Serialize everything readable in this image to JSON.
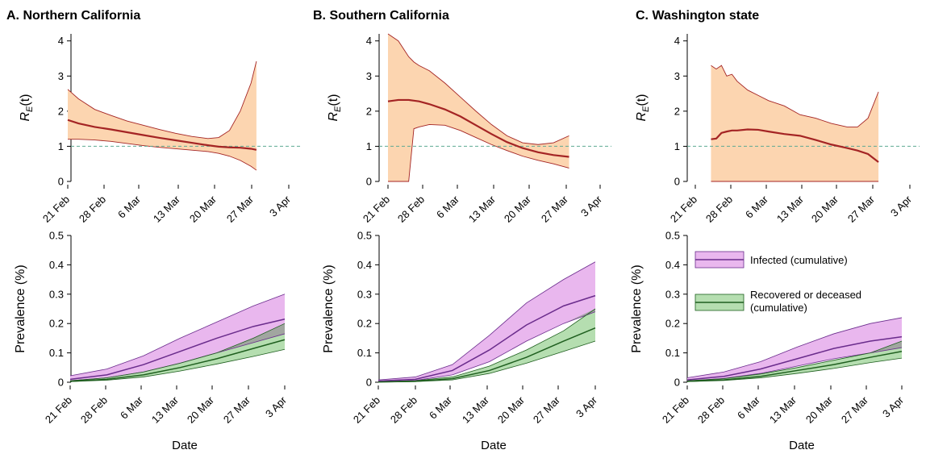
{
  "chart_data": [
    {
      "type": "line",
      "panel_title": "A. Northern California",
      "ylabel": "R_E(t)",
      "ylim": [
        0,
        4.2
      ],
      "yticks": [
        0,
        1,
        2,
        3,
        4
      ],
      "x_tick_labels": [
        "21 Feb",
        "28 Feb",
        "6 Mar",
        "13 Mar",
        "20 Mar",
        "27 Mar",
        "3 Apr"
      ],
      "reference_line": 1,
      "x_days": [
        0,
        2,
        5,
        8,
        11,
        14,
        17,
        20,
        23,
        26,
        28,
        30,
        32,
        34,
        35
      ],
      "median": [
        1.75,
        1.65,
        1.55,
        1.48,
        1.4,
        1.32,
        1.24,
        1.17,
        1.1,
        1.03,
        0.99,
        0.97,
        0.96,
        0.93,
        0.9
      ],
      "lower": [
        1.2,
        1.2,
        1.18,
        1.14,
        1.08,
        1.02,
        0.97,
        0.93,
        0.89,
        0.85,
        0.8,
        0.72,
        0.6,
        0.43,
        0.32
      ],
      "upper": [
        2.62,
        2.35,
        2.05,
        1.88,
        1.72,
        1.6,
        1.48,
        1.37,
        1.28,
        1.22,
        1.25,
        1.45,
        2.0,
        2.8,
        3.42
      ]
    },
    {
      "type": "line",
      "panel_title": "B. Southern California",
      "ylabel": "R_E(t)",
      "ylim": [
        0,
        4.2
      ],
      "yticks": [
        0,
        1,
        2,
        3,
        4
      ],
      "x_tick_labels": [
        "21 Feb",
        "28 Feb",
        "6 Mar",
        "13 Mar",
        "20 Mar",
        "27 Mar",
        "3 Apr"
      ],
      "reference_line": 1,
      "x_days": [
        0,
        2,
        4,
        5,
        6,
        8,
        11,
        14,
        17,
        20,
        23,
        26,
        29,
        32,
        35
      ],
      "median": [
        2.28,
        2.32,
        2.32,
        2.3,
        2.28,
        2.2,
        2.05,
        1.85,
        1.6,
        1.35,
        1.12,
        0.95,
        0.83,
        0.75,
        0.7
      ],
      "lower": [
        0,
        0,
        0,
        1.5,
        1.55,
        1.62,
        1.6,
        1.45,
        1.25,
        1.05,
        0.88,
        0.72,
        0.6,
        0.5,
        0.38
      ],
      "upper": [
        4.2,
        4.0,
        3.55,
        3.4,
        3.3,
        3.15,
        2.8,
        2.4,
        2.0,
        1.62,
        1.3,
        1.1,
        1.05,
        1.1,
        1.3
      ]
    },
    {
      "type": "line",
      "panel_title": "C. Washington state",
      "ylabel": "R_E(t)",
      "ylim": [
        0,
        4.2
      ],
      "yticks": [
        0,
        1,
        2,
        3,
        4
      ],
      "x_tick_labels": [
        "21 Feb",
        "28 Feb",
        "6 Mar",
        "13 Mar",
        "20 Mar",
        "27 Mar",
        "3 Apr"
      ],
      "reference_line": 1,
      "x_days": [
        3,
        4,
        5,
        6,
        7,
        8,
        10,
        12,
        14,
        17,
        20,
        23,
        26,
        29,
        31,
        33,
        35
      ],
      "median": [
        1.2,
        1.22,
        1.38,
        1.42,
        1.45,
        1.45,
        1.48,
        1.47,
        1.42,
        1.35,
        1.3,
        1.18,
        1.05,
        0.95,
        0.88,
        0.78,
        0.55
      ],
      "lower": [
        0,
        0,
        0,
        0,
        0,
        0,
        0,
        0,
        0,
        0,
        0,
        0,
        0,
        0,
        0,
        0,
        0
      ],
      "upper": [
        3.3,
        3.2,
        3.3,
        3.0,
        3.05,
        2.85,
        2.6,
        2.45,
        2.3,
        2.15,
        1.9,
        1.8,
        1.65,
        1.55,
        1.55,
        1.8,
        2.55
      ]
    },
    {
      "type": "area",
      "ylabel": "Prevalence (%)",
      "xlabel": "Date",
      "ylim": [
        0,
        0.5
      ],
      "yticks": [
        0,
        0.1,
        0.2,
        0.3,
        0.4,
        0.5
      ],
      "x_tick_labels": [
        "21 Feb",
        "28 Feb",
        "6 Mar",
        "13 Mar",
        "20 Mar",
        "27 Mar",
        "3 Apr"
      ],
      "x_days": [
        0,
        7,
        14,
        21,
        28,
        35,
        41
      ],
      "series": [
        {
          "name": "Infected (cumulative)",
          "median": [
            0.01,
            0.025,
            0.06,
            0.105,
            0.15,
            0.19,
            0.215
          ],
          "lower": [
            0.005,
            0.015,
            0.035,
            0.065,
            0.1,
            0.135,
            0.165
          ],
          "upper": [
            0.022,
            0.045,
            0.09,
            0.15,
            0.205,
            0.26,
            0.3
          ]
        },
        {
          "name": "Recovered or deceased (cumulative)",
          "median": [
            0.003,
            0.01,
            0.025,
            0.05,
            0.08,
            0.115,
            0.145
          ],
          "lower": [
            0.002,
            0.007,
            0.018,
            0.038,
            0.062,
            0.088,
            0.112
          ],
          "upper": [
            0.005,
            0.015,
            0.035,
            0.065,
            0.1,
            0.15,
            0.2
          ]
        }
      ]
    },
    {
      "type": "area",
      "ylabel": "Prevalence (%)",
      "xlabel": "Date",
      "ylim": [
        0,
        0.5
      ],
      "yticks": [
        0,
        0.1,
        0.2,
        0.3,
        0.4,
        0.5
      ],
      "x_tick_labels": [
        "21 Feb",
        "28 Feb",
        "6 Mar",
        "13 Mar",
        "20 Mar",
        "27 Mar",
        "3 Apr"
      ],
      "x_days": [
        0,
        7,
        14,
        21,
        28,
        35,
        41
      ],
      "series": [
        {
          "name": "Infected (cumulative)",
          "median": [
            0.004,
            0.01,
            0.04,
            0.11,
            0.195,
            0.26,
            0.295
          ],
          "lower": [
            0.002,
            0.006,
            0.025,
            0.07,
            0.14,
            0.2,
            0.24
          ],
          "upper": [
            0.008,
            0.018,
            0.06,
            0.16,
            0.27,
            0.35,
            0.41
          ]
        },
        {
          "name": "Recovered or deceased (cumulative)",
          "median": [
            0.001,
            0.003,
            0.012,
            0.04,
            0.085,
            0.14,
            0.185
          ],
          "lower": [
            0.0005,
            0.002,
            0.008,
            0.03,
            0.065,
            0.105,
            0.14
          ],
          "upper": [
            0.002,
            0.005,
            0.018,
            0.055,
            0.11,
            0.175,
            0.25
          ]
        }
      ]
    },
    {
      "type": "area",
      "ylabel": "Prevalence (%)",
      "xlabel": "Date",
      "ylim": [
        0,
        0.5
      ],
      "yticks": [
        0,
        0.1,
        0.2,
        0.3,
        0.4,
        0.5
      ],
      "x_tick_labels": [
        "21 Feb",
        "28 Feb",
        "6 Mar",
        "13 Mar",
        "20 Mar",
        "27 Mar",
        "3 Apr"
      ],
      "x_days": [
        0,
        7,
        14,
        21,
        28,
        35,
        41
      ],
      "legend_position": "top-right",
      "series": [
        {
          "name": "Infected (cumulative)",
          "median": [
            0.008,
            0.02,
            0.045,
            0.08,
            0.115,
            0.14,
            0.155
          ],
          "lower": [
            0.004,
            0.013,
            0.03,
            0.055,
            0.08,
            0.1,
            0.118
          ],
          "upper": [
            0.015,
            0.035,
            0.07,
            0.12,
            0.165,
            0.2,
            0.22
          ]
        },
        {
          "name": "Recovered or deceased (cumulative)",
          "median": [
            0.003,
            0.008,
            0.02,
            0.04,
            0.06,
            0.085,
            0.105
          ],
          "lower": [
            0.002,
            0.006,
            0.015,
            0.03,
            0.047,
            0.067,
            0.082
          ],
          "upper": [
            0.005,
            0.012,
            0.028,
            0.05,
            0.075,
            0.1,
            0.14
          ]
        }
      ]
    }
  ],
  "colors": {
    "re_band": "#fcd5b0",
    "re_line": "#a42424",
    "ref_line": "#5ea992",
    "infected_band": "#e9b7ee",
    "infected_line": "#6a2c8c",
    "recovered_band": "#b5deb0",
    "recovered_line": "#1f5f1f",
    "overlap_band": "#9fa09f"
  }
}
